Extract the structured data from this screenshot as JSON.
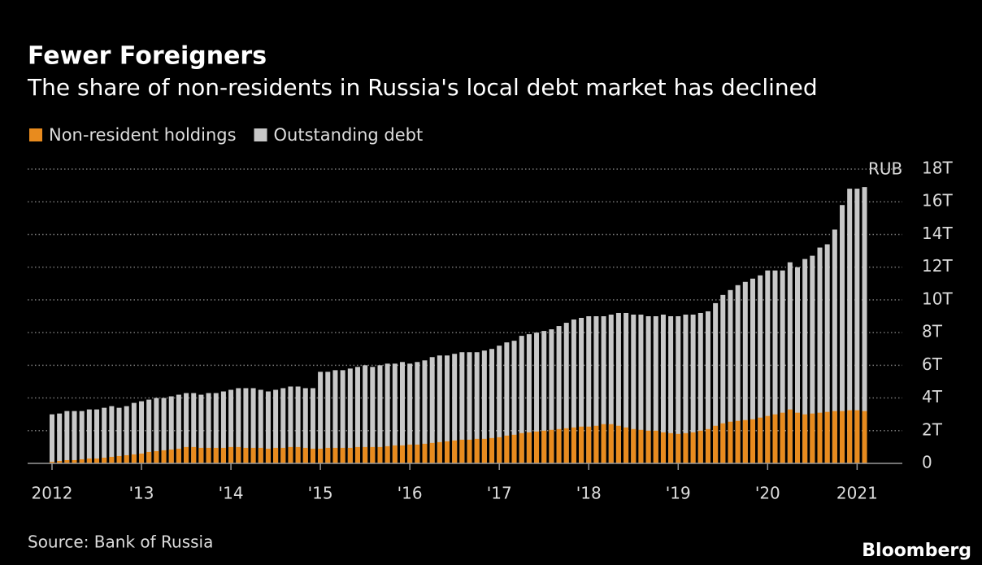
{
  "chart_data": {
    "type": "bar",
    "title": "Fewer Foreigners",
    "subtitle": "The share of non-residents in Russia's local debt market has declined",
    "unit_label": "RUB",
    "source": "Source: Bank of Russia",
    "brand": "Bloomberg",
    "categories": [
      "2012",
      null,
      null,
      null,
      null,
      null,
      null,
      null,
      null,
      null,
      null,
      null,
      "'13",
      null,
      null,
      null,
      null,
      null,
      null,
      null,
      null,
      null,
      null,
      null,
      "'14",
      null,
      null,
      null,
      null,
      null,
      null,
      null,
      null,
      null,
      null,
      null,
      "'15",
      null,
      null,
      null,
      null,
      null,
      null,
      null,
      null,
      null,
      null,
      null,
      "'16",
      null,
      null,
      null,
      null,
      null,
      null,
      null,
      null,
      null,
      null,
      null,
      "'17",
      null,
      null,
      null,
      null,
      null,
      null,
      null,
      null,
      null,
      null,
      null,
      "'18",
      null,
      null,
      null,
      null,
      null,
      null,
      null,
      null,
      null,
      null,
      null,
      "'19",
      null,
      null,
      null,
      null,
      null,
      null,
      null,
      null,
      null,
      null,
      null,
      "'20",
      null,
      null,
      null,
      null,
      null,
      null,
      null,
      null,
      null,
      null,
      null,
      "2021",
      null
    ],
    "series": [
      {
        "name": "Non-resident holdings",
        "color": "#e88b1e",
        "values": [
          0.1,
          0.15,
          0.2,
          0.2,
          0.25,
          0.3,
          0.3,
          0.35,
          0.4,
          0.45,
          0.5,
          0.55,
          0.6,
          0.7,
          0.75,
          0.8,
          0.85,
          0.9,
          1.0,
          1.0,
          0.95,
          0.95,
          0.95,
          0.95,
          1.0,
          1.0,
          0.95,
          0.95,
          0.95,
          0.9,
          0.95,
          0.95,
          1.0,
          1.0,
          0.95,
          0.9,
          0.9,
          0.95,
          0.95,
          0.95,
          0.95,
          1.0,
          1.0,
          1.0,
          1.0,
          1.05,
          1.1,
          1.1,
          1.15,
          1.15,
          1.2,
          1.25,
          1.3,
          1.35,
          1.4,
          1.45,
          1.45,
          1.5,
          1.5,
          1.55,
          1.6,
          1.7,
          1.75,
          1.85,
          1.9,
          1.95,
          2.0,
          2.05,
          2.1,
          2.15,
          2.2,
          2.25,
          2.25,
          2.3,
          2.4,
          2.4,
          2.3,
          2.2,
          2.1,
          2.05,
          2.0,
          2.0,
          1.9,
          1.85,
          1.8,
          1.85,
          1.9,
          2.0,
          2.1,
          2.3,
          2.45,
          2.55,
          2.6,
          2.65,
          2.7,
          2.8,
          2.9,
          3.0,
          3.1,
          3.3,
          3.1,
          3.0,
          3.05,
          3.1,
          3.15,
          3.2,
          3.2,
          3.25,
          3.25,
          3.2
        ]
      },
      {
        "name": "Outstanding debt",
        "color": "#c8c8c8",
        "values": [
          3.0,
          3.05,
          3.2,
          3.2,
          3.2,
          3.3,
          3.3,
          3.4,
          3.5,
          3.4,
          3.5,
          3.7,
          3.8,
          3.9,
          4.0,
          4.0,
          4.1,
          4.2,
          4.3,
          4.3,
          4.2,
          4.3,
          4.3,
          4.4,
          4.5,
          4.6,
          4.6,
          4.6,
          4.5,
          4.4,
          4.5,
          4.6,
          4.7,
          4.7,
          4.6,
          4.6,
          5.6,
          5.6,
          5.7,
          5.7,
          5.8,
          5.9,
          6.0,
          5.9,
          6.0,
          6.1,
          6.1,
          6.2,
          6.1,
          6.2,
          6.3,
          6.5,
          6.6,
          6.6,
          6.7,
          6.8,
          6.8,
          6.8,
          6.9,
          7.0,
          7.2,
          7.4,
          7.5,
          7.8,
          7.9,
          8.0,
          8.1,
          8.2,
          8.4,
          8.6,
          8.8,
          8.9,
          9.0,
          9.0,
          9.0,
          9.1,
          9.2,
          9.2,
          9.1,
          9.1,
          9.0,
          9.0,
          9.1,
          9.0,
          9.0,
          9.1,
          9.1,
          9.2,
          9.3,
          9.8,
          10.3,
          10.6,
          10.9,
          11.1,
          11.3,
          11.5,
          11.8,
          11.8,
          11.8,
          12.3,
          12.0,
          12.5,
          12.7,
          13.2,
          13.4,
          14.3,
          15.8,
          16.8,
          16.8,
          16.9
        ]
      }
    ],
    "ylim": [
      0,
      18
    ],
    "yticks": [
      0,
      {
        "value": 2,
        "label": "2T"
      },
      {
        "value": 4,
        "label": "4T"
      },
      {
        "value": 6,
        "label": "6T"
      },
      {
        "value": 8,
        "label": "8T"
      },
      {
        "value": 10,
        "label": "10T"
      },
      {
        "value": 12,
        "label": "12T"
      },
      {
        "value": 14,
        "label": "14T"
      },
      {
        "value": 16,
        "label": "16T"
      },
      {
        "value": 18,
        "label": "18T"
      }
    ],
    "grid": true
  }
}
